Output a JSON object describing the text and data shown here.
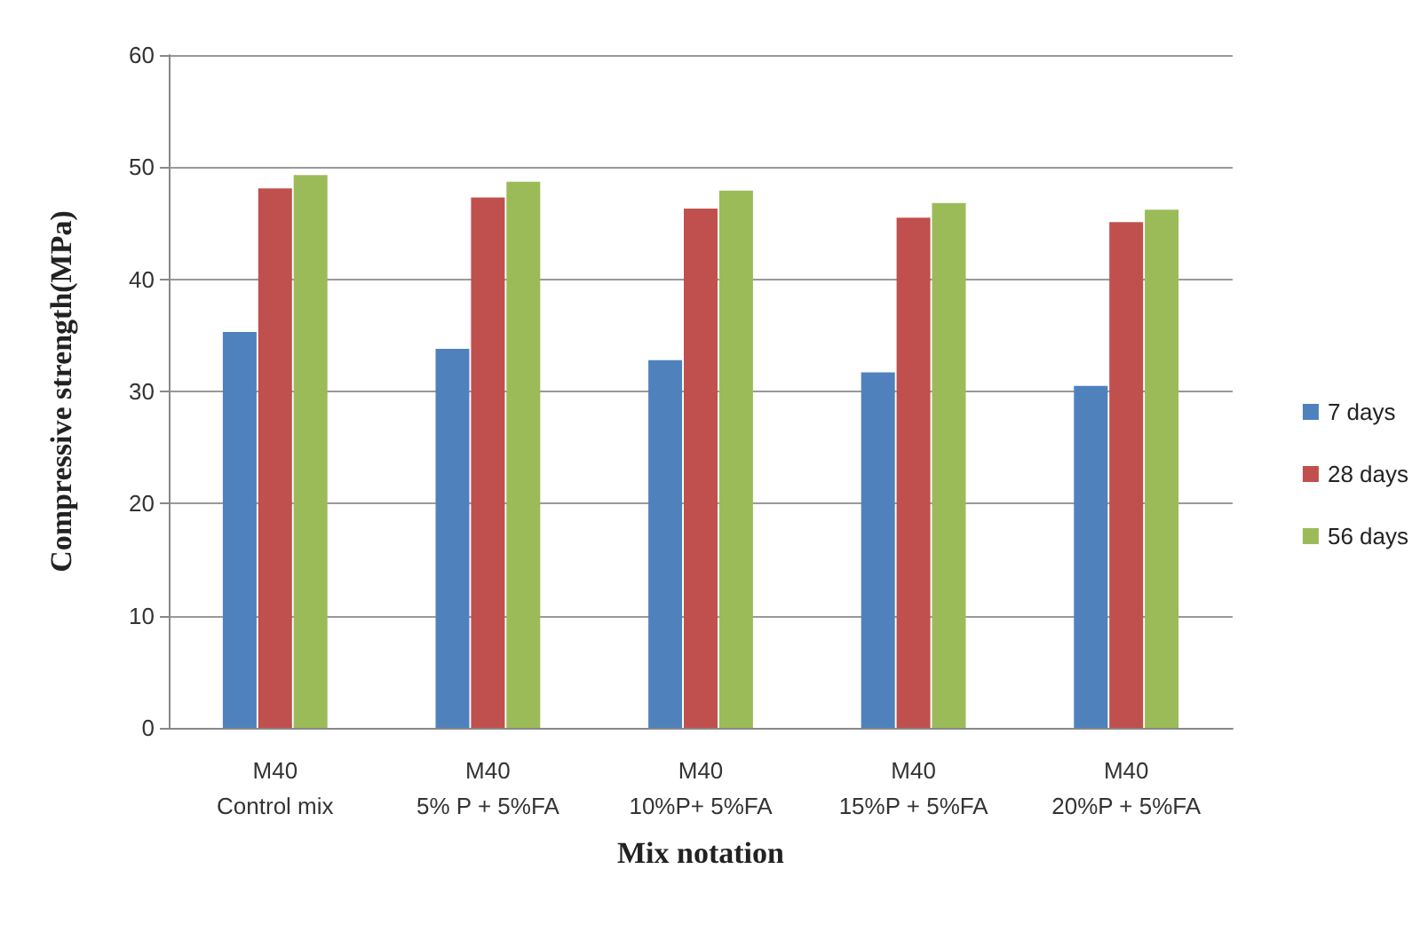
{
  "chart_data": {
    "type": "bar",
    "xlabel": "Mix notation",
    "ylabel": "Compressive strength(MPa)",
    "categories": [
      "M40\nControl mix",
      "M40\n5% P + 5%FA",
      "M40\n10%P+ 5%FA",
      "M40\n15%P + 5%FA",
      "M40\n20%P + 5%FA"
    ],
    "series": [
      {
        "name": "7 days",
        "color": "#4f81bd",
        "values": [
          35.3,
          33.8,
          32.8,
          31.7,
          30.5
        ]
      },
      {
        "name": "28 days",
        "color": "#c0504d",
        "values": [
          48.1,
          47.3,
          46.3,
          45.5,
          45.1
        ]
      },
      {
        "name": "56 days",
        "color": "#9bbb59",
        "values": [
          49.3,
          48.7,
          47.9,
          46.8,
          46.2
        ]
      }
    ],
    "ylim": [
      0,
      60
    ],
    "yticks": [
      0,
      10,
      20,
      30,
      40,
      50,
      60
    ],
    "grid": "y",
    "legend": "right"
  }
}
